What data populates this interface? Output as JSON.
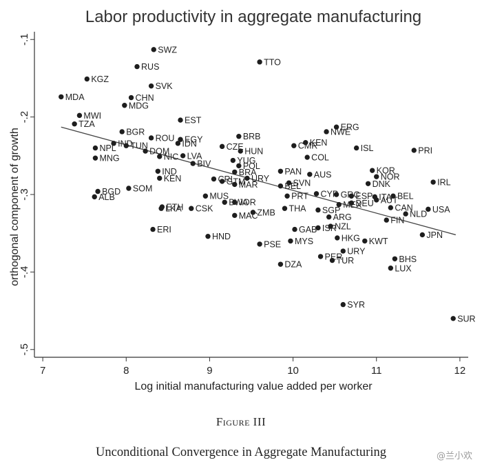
{
  "chart_data": {
    "type": "scatter",
    "title": "Labor productivity in aggregate manufacturing",
    "xlabel": "Log initial manufacturing value added per worker",
    "ylabel": "orthogonal component of growth",
    "xlim": [
      6.9,
      12.1
    ],
    "ylim": [
      -0.51,
      -0.09
    ],
    "x_ticks": [
      7,
      8,
      9,
      10,
      11,
      12
    ],
    "x_tick_labels": [
      "7",
      "8",
      "9",
      "10",
      "11",
      "12"
    ],
    "y_ticks": [
      -0.1,
      -0.2,
      -0.3,
      -0.4,
      -0.5
    ],
    "y_tick_labels": [
      "-.1",
      "-.2",
      "-.3",
      "-.4",
      "-.5"
    ],
    "grid": false,
    "fit_line": {
      "x": [
        7.22,
        11.95
      ],
      "y": [
        -0.213,
        -0.352
      ]
    },
    "points": [
      {
        "label": "SWZ",
        "x": 8.33,
        "y": -0.113
      },
      {
        "label": "TTO",
        "x": 9.6,
        "y": -0.129
      },
      {
        "label": "RUS",
        "x": 8.13,
        "y": -0.135
      },
      {
        "label": "KGZ",
        "x": 7.53,
        "y": -0.151
      },
      {
        "label": "SVK",
        "x": 8.3,
        "y": -0.16
      },
      {
        "label": "MDA",
        "x": 7.22,
        "y": -0.174
      },
      {
        "label": "CHN",
        "x": 8.06,
        "y": -0.175
      },
      {
        "label": "MDG",
        "x": 7.98,
        "y": -0.185
      },
      {
        "label": "MWI",
        "x": 7.44,
        "y": -0.198
      },
      {
        "label": "EST",
        "x": 8.65,
        "y": -0.204
      },
      {
        "label": "TZA",
        "x": 7.38,
        "y": -0.209
      },
      {
        "label": "ERG",
        "x": 10.52,
        "y": -0.213
      },
      {
        "label": "NWE",
        "x": 10.4,
        "y": -0.219
      },
      {
        "label": "BGR",
        "x": 7.95,
        "y": -0.219
      },
      {
        "label": "BRB",
        "x": 9.35,
        "y": -0.225
      },
      {
        "label": "ROU",
        "x": 8.3,
        "y": -0.227
      },
      {
        "label": "EGY",
        "x": 8.65,
        "y": -0.229
      },
      {
        "label": "KEN",
        "x": 10.15,
        "y": -0.233
      },
      {
        "label": "IDN",
        "x": 8.62,
        "y": -0.234
      },
      {
        "label": "NPL",
        "x": 7.63,
        "y": -0.24
      },
      {
        "label": "CMR",
        "x": 10.01,
        "y": -0.237
      },
      {
        "label": "ISL",
        "x": 10.76,
        "y": -0.24
      },
      {
        "label": "PRI",
        "x": 11.45,
        "y": -0.243
      },
      {
        "label": "CZE",
        "x": 9.15,
        "y": -0.238
      },
      {
        "label": "IND",
        "x": 7.85,
        "y": -0.234
      },
      {
        "label": "TUN",
        "x": 8.0,
        "y": -0.237
      },
      {
        "label": "HUN",
        "x": 9.37,
        "y": -0.244
      },
      {
        "label": "DOM",
        "x": 8.23,
        "y": -0.244
      },
      {
        "label": "MNG",
        "x": 7.63,
        "y": -0.253
      },
      {
        "label": "NIC",
        "x": 8.4,
        "y": -0.251
      },
      {
        "label": "LVA",
        "x": 8.68,
        "y": -0.25
      },
      {
        "label": "COL",
        "x": 10.17,
        "y": -0.252
      },
      {
        "label": "YUG",
        "x": 9.28,
        "y": -0.256
      },
      {
        "label": "BIV",
        "x": 8.8,
        "y": -0.26
      },
      {
        "label": "POL",
        "x": 9.35,
        "y": -0.263
      },
      {
        "label": "KOR",
        "x": 10.95,
        "y": -0.269
      },
      {
        "label": "IND",
        "x": 8.38,
        "y": -0.27
      },
      {
        "label": "PAN",
        "x": 9.85,
        "y": -0.27
      },
      {
        "label": "AUS",
        "x": 10.2,
        "y": -0.274
      },
      {
        "label": "BRA",
        "x": 9.3,
        "y": -0.271
      },
      {
        "label": "NOR",
        "x": 11.0,
        "y": -0.277
      },
      {
        "label": "KEN",
        "x": 8.4,
        "y": -0.279
      },
      {
        "label": "CRI",
        "x": 9.05,
        "y": -0.28
      },
      {
        "label": "URY",
        "x": 9.45,
        "y": -0.279
      },
      {
        "label": "GTM",
        "x": 9.15,
        "y": -0.283
      },
      {
        "label": "DNK",
        "x": 10.9,
        "y": -0.286
      },
      {
        "label": "IRL",
        "x": 11.68,
        "y": -0.284
      },
      {
        "label": "SVN",
        "x": 9.95,
        "y": -0.285
      },
      {
        "label": "MAR",
        "x": 9.3,
        "y": -0.287
      },
      {
        "label": "BEL",
        "x": 9.85,
        "y": -0.289
      },
      {
        "label": "BGD",
        "x": 7.66,
        "y": -0.296
      },
      {
        "label": "SOM",
        "x": 8.03,
        "y": -0.292
      },
      {
        "label": "ALB",
        "x": 7.62,
        "y": -0.303
      },
      {
        "label": "MUS",
        "x": 8.95,
        "y": -0.302
      },
      {
        "label": "PRT",
        "x": 9.93,
        "y": -0.302
      },
      {
        "label": "CYP",
        "x": 10.28,
        "y": -0.299
      },
      {
        "label": "GRC",
        "x": 10.52,
        "y": -0.3
      },
      {
        "label": "ESP",
        "x": 10.7,
        "y": -0.302
      },
      {
        "label": "ITA",
        "x": 10.98,
        "y": -0.303
      },
      {
        "label": "BEL",
        "x": 11.2,
        "y": -0.302
      },
      {
        "label": "AUT",
        "x": 11.0,
        "y": -0.307
      },
      {
        "label": "DEU",
        "x": 10.7,
        "y": -0.311
      },
      {
        "label": "MEX",
        "x": 10.55,
        "y": -0.313
      },
      {
        "label": "CAN",
        "x": 11.17,
        "y": -0.317
      },
      {
        "label": "USA",
        "x": 11.62,
        "y": -0.319
      },
      {
        "label": "NLD",
        "x": 11.35,
        "y": -0.325
      },
      {
        "label": "FIN",
        "x": 11.12,
        "y": -0.333
      },
      {
        "label": "JOR",
        "x": 9.3,
        "y": -0.31
      },
      {
        "label": "BWA",
        "x": 9.18,
        "y": -0.31
      },
      {
        "label": "CSK",
        "x": 8.78,
        "y": -0.318
      },
      {
        "label": "ETH",
        "x": 8.43,
        "y": -0.316
      },
      {
        "label": "LKA",
        "x": 8.42,
        "y": -0.318
      },
      {
        "label": "THA",
        "x": 9.9,
        "y": -0.318
      },
      {
        "label": "SGP",
        "x": 10.3,
        "y": -0.32
      },
      {
        "label": "ZMB",
        "x": 9.52,
        "y": -0.323
      },
      {
        "label": "MAC",
        "x": 9.3,
        "y": -0.327
      },
      {
        "label": "ARG",
        "x": 10.43,
        "y": -0.329
      },
      {
        "label": "ERI",
        "x": 8.32,
        "y": -0.345
      },
      {
        "label": "ISR",
        "x": 10.3,
        "y": -0.343
      },
      {
        "label": "NZL",
        "x": 10.45,
        "y": -0.341
      },
      {
        "label": "GAB",
        "x": 10.02,
        "y": -0.345
      },
      {
        "label": "HND",
        "x": 8.98,
        "y": -0.354
      },
      {
        "label": "HKG",
        "x": 10.53,
        "y": -0.356
      },
      {
        "label": "KWT",
        "x": 10.86,
        "y": -0.36
      },
      {
        "label": "JPN",
        "x": 11.55,
        "y": -0.352
      },
      {
        "label": "PSE",
        "x": 9.6,
        "y": -0.364
      },
      {
        "label": "MYS",
        "x": 9.97,
        "y": -0.36
      },
      {
        "label": "URY",
        "x": 10.6,
        "y": -0.373
      },
      {
        "label": "PER",
        "x": 10.33,
        "y": -0.38
      },
      {
        "label": "TUR",
        "x": 10.47,
        "y": -0.385
      },
      {
        "label": "BHS",
        "x": 11.22,
        "y": -0.383
      },
      {
        "label": "DZA",
        "x": 9.85,
        "y": -0.39
      },
      {
        "label": "LUX",
        "x": 11.17,
        "y": -0.395
      },
      {
        "label": "SYR",
        "x": 10.6,
        "y": -0.442
      },
      {
        "label": "SUR",
        "x": 11.92,
        "y": -0.46
      }
    ]
  },
  "figure_label": "Figure III",
  "caption": "Unconditional Convergence in Aggregate Manufacturing",
  "watermark": "@兰小欢"
}
